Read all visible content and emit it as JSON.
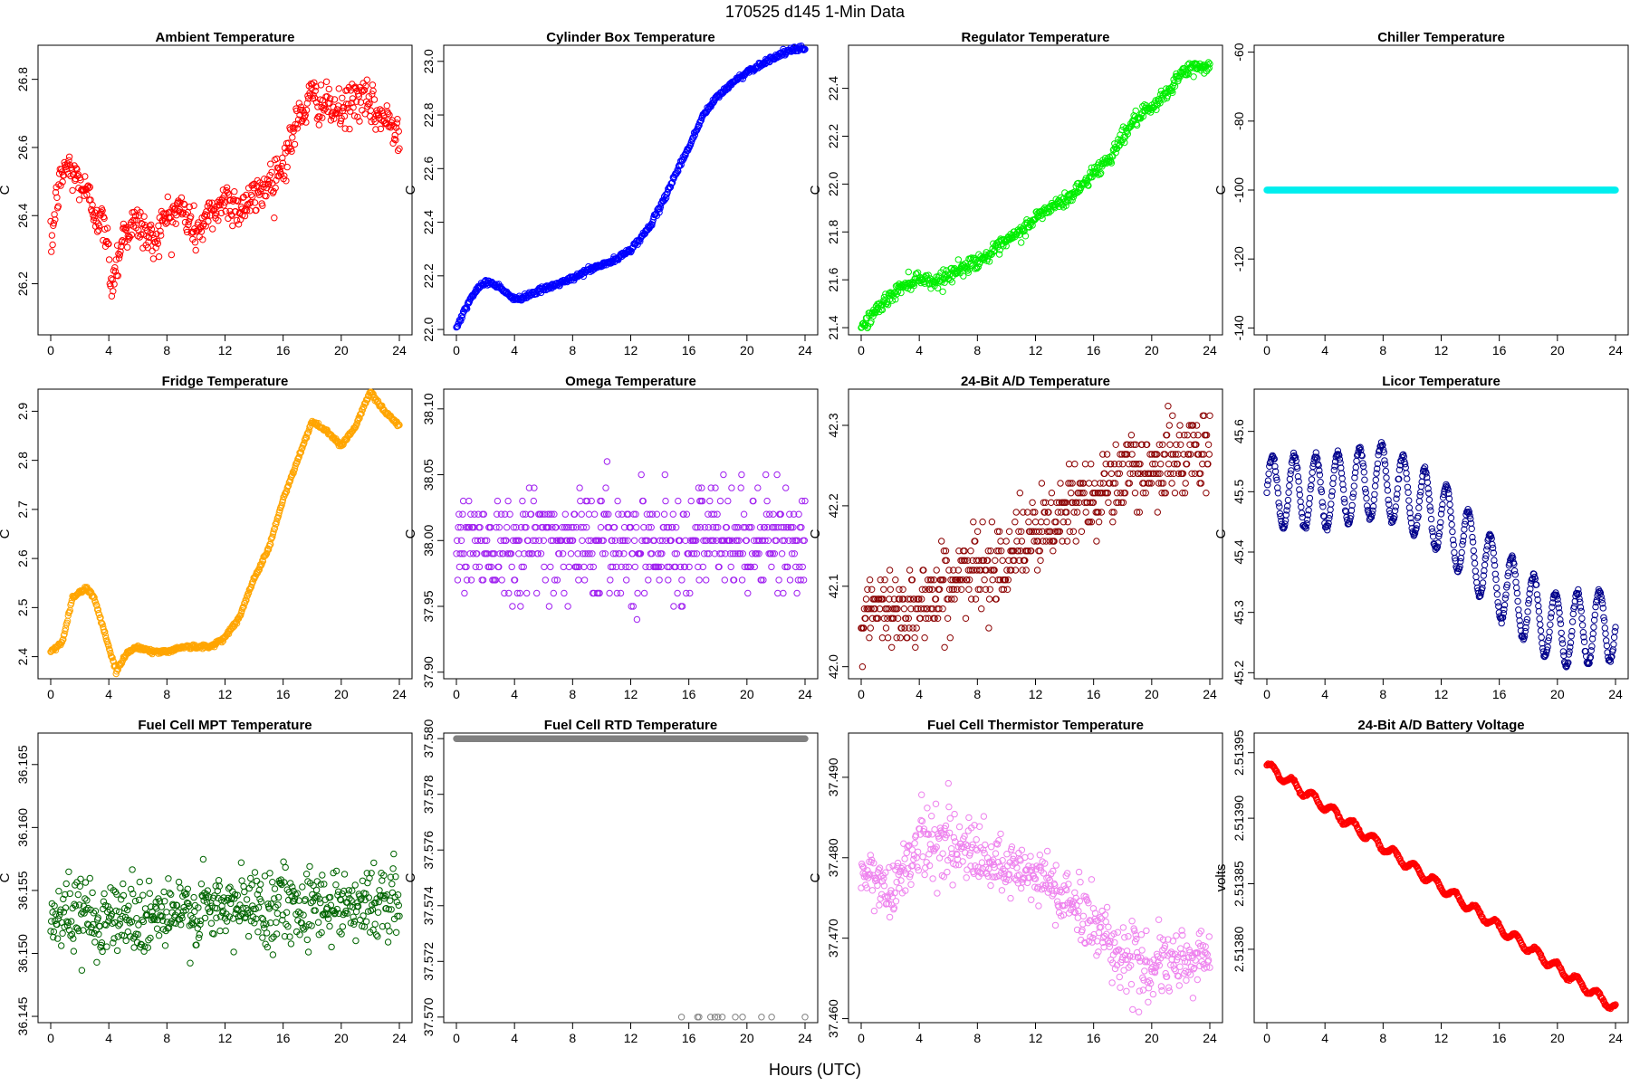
{
  "figure": {
    "title": "170525   d145   1-Min Data",
    "xlabel": "Hours (UTC)"
  },
  "chart_data": [
    {
      "type": "scatter",
      "title": "Ambient Temperature",
      "ylabel": "C",
      "color": "#ff0000",
      "xlim": [
        0,
        24
      ],
      "ylim": [
        26.05,
        26.9
      ],
      "xticks": [
        0,
        4,
        8,
        12,
        16,
        20,
        24
      ],
      "yticks": [
        26.2,
        26.4,
        26.6,
        26.8
      ],
      "ytick_labels": [
        "26.2",
        "26.4",
        "26.6",
        "26.8"
      ],
      "pattern": "noisy",
      "noise": 0.06,
      "trend": [
        [
          0,
          26.3
        ],
        [
          0.4,
          26.45
        ],
        [
          1,
          26.55
        ],
        [
          2,
          26.5
        ],
        [
          3,
          26.42
        ],
        [
          3.8,
          26.35
        ],
        [
          4.2,
          26.2
        ],
        [
          5,
          26.35
        ],
        [
          6,
          26.38
        ],
        [
          7,
          26.32
        ],
        [
          8,
          26.4
        ],
        [
          9,
          26.42
        ],
        [
          10,
          26.35
        ],
        [
          11,
          26.4
        ],
        [
          12,
          26.45
        ],
        [
          13,
          26.42
        ],
        [
          14,
          26.45
        ],
        [
          15,
          26.5
        ],
        [
          16,
          26.55
        ],
        [
          17,
          26.68
        ],
        [
          18,
          26.75
        ],
        [
          19,
          26.72
        ],
        [
          20,
          26.7
        ],
        [
          21,
          26.75
        ],
        [
          22,
          26.72
        ],
        [
          23,
          26.68
        ],
        [
          24,
          26.65
        ]
      ]
    },
    {
      "type": "scatter",
      "title": "Cylinder Box Temperature",
      "ylabel": "C",
      "color": "#0000ff",
      "xlim": [
        0,
        24
      ],
      "ylim": [
        21.98,
        23.06
      ],
      "xticks": [
        0,
        4,
        8,
        12,
        16,
        20,
        24
      ],
      "yticks": [
        22.0,
        22.2,
        22.4,
        22.6,
        22.8,
        23.0
      ],
      "ytick_labels": [
        "22.0",
        "22.2",
        "22.4",
        "22.6",
        "22.8",
        "23.0"
      ],
      "pattern": "smooth",
      "noise": 0.005,
      "trend": [
        [
          0,
          22.01
        ],
        [
          1,
          22.12
        ],
        [
          2,
          22.18
        ],
        [
          3,
          22.16
        ],
        [
          4,
          22.11
        ],
        [
          5,
          22.13
        ],
        [
          6,
          22.15
        ],
        [
          7,
          22.17
        ],
        [
          8,
          22.19
        ],
        [
          9,
          22.22
        ],
        [
          10,
          22.24
        ],
        [
          11,
          22.26
        ],
        [
          12,
          22.3
        ],
        [
          13,
          22.36
        ],
        [
          14,
          22.45
        ],
        [
          15,
          22.57
        ],
        [
          16,
          22.68
        ],
        [
          17,
          22.8
        ],
        [
          18,
          22.87
        ],
        [
          19,
          22.92
        ],
        [
          20,
          22.96
        ],
        [
          21,
          22.99
        ],
        [
          22,
          23.02
        ],
        [
          23,
          23.04
        ],
        [
          24,
          23.05
        ]
      ]
    },
    {
      "type": "scatter",
      "title": "Regulator Temperature",
      "ylabel": "C",
      "color": "#00ee00",
      "xlim": [
        0,
        24
      ],
      "ylim": [
        21.37,
        22.58
      ],
      "xticks": [
        0,
        4,
        8,
        12,
        16,
        20,
        24
      ],
      "yticks": [
        21.4,
        21.6,
        21.8,
        22.0,
        22.2,
        22.4
      ],
      "ytick_labels": [
        "21.4",
        "21.6",
        "21.8",
        "22.0",
        "22.2",
        "22.4"
      ],
      "pattern": "smooth",
      "noise": 0.015,
      "trend": [
        [
          0,
          21.4
        ],
        [
          1,
          21.47
        ],
        [
          2,
          21.53
        ],
        [
          3,
          21.58
        ],
        [
          4,
          21.61
        ],
        [
          5,
          21.59
        ],
        [
          6,
          21.62
        ],
        [
          7,
          21.65
        ],
        [
          8,
          21.68
        ],
        [
          9,
          21.71
        ],
        [
          10,
          21.76
        ],
        [
          11,
          21.8
        ],
        [
          12,
          21.86
        ],
        [
          13,
          21.9
        ],
        [
          14,
          21.93
        ],
        [
          15,
          21.98
        ],
        [
          16,
          22.05
        ],
        [
          17,
          22.1
        ],
        [
          18,
          22.2
        ],
        [
          19,
          22.28
        ],
        [
          20,
          22.31
        ],
        [
          21,
          22.38
        ],
        [
          22,
          22.46
        ],
        [
          23,
          22.49
        ],
        [
          24,
          22.49
        ]
      ]
    },
    {
      "type": "scatter",
      "title": "Chiller Temperature",
      "ylabel": "C",
      "color": "#00eeee",
      "xlim": [
        0,
        24
      ],
      "ylim": [
        -142,
        -58
      ],
      "xticks": [
        0,
        4,
        8,
        12,
        16,
        20,
        24
      ],
      "yticks": [
        -140,
        -120,
        -100,
        -80,
        -60
      ],
      "ytick_labels": [
        "-140",
        "-120",
        "-100",
        "-80",
        "-60"
      ],
      "pattern": "smooth",
      "noise": 0,
      "trend": [
        [
          0,
          -100
        ],
        [
          24,
          -100
        ]
      ]
    },
    {
      "type": "scatter",
      "title": "Fridge Temperature",
      "ylabel": "C",
      "color": "#ffa500",
      "xlim": [
        0,
        24
      ],
      "ylim": [
        2.355,
        2.945
      ],
      "xticks": [
        0,
        4,
        8,
        12,
        16,
        20,
        24
      ],
      "yticks": [
        2.4,
        2.5,
        2.6,
        2.7,
        2.8,
        2.9
      ],
      "ytick_labels": [
        "2.4",
        "2.5",
        "2.6",
        "2.7",
        "2.8",
        "2.9"
      ],
      "pattern": "smooth",
      "noise": 0.002,
      "trend": [
        [
          0,
          2.41
        ],
        [
          0.8,
          2.43
        ],
        [
          1.5,
          2.52
        ],
        [
          2.5,
          2.54
        ],
        [
          3,
          2.52
        ],
        [
          3.7,
          2.45
        ],
        [
          4.5,
          2.37
        ],
        [
          5.3,
          2.41
        ],
        [
          6,
          2.42
        ],
        [
          7,
          2.41
        ],
        [
          8,
          2.41
        ],
        [
          9,
          2.42
        ],
        [
          10,
          2.42
        ],
        [
          11,
          2.42
        ],
        [
          12,
          2.44
        ],
        [
          13,
          2.48
        ],
        [
          14,
          2.56
        ],
        [
          15,
          2.62
        ],
        [
          16,
          2.72
        ],
        [
          17,
          2.8
        ],
        [
          18,
          2.88
        ],
        [
          19,
          2.86
        ],
        [
          20,
          2.83
        ],
        [
          21,
          2.87
        ],
        [
          22,
          2.94
        ],
        [
          23,
          2.9
        ],
        [
          24,
          2.87
        ]
      ]
    },
    {
      "type": "scatter",
      "title": "Omega Temperature",
      "ylabel": "C",
      "color": "#a020f0",
      "xlim": [
        0,
        24
      ],
      "ylim": [
        37.895,
        38.115
      ],
      "xticks": [
        0,
        4,
        8,
        12,
        16,
        20,
        24
      ],
      "yticks": [
        37.9,
        37.95,
        38.0,
        38.05,
        38.1
      ],
      "ytick_labels": [
        "37.90",
        "37.95",
        "38.00",
        "38.05",
        "38.10"
      ],
      "pattern": "quantized",
      "step": 0.01,
      "noise": 0.04,
      "trend": [
        [
          0,
          38.0
        ],
        [
          24,
          38.0
        ]
      ]
    },
    {
      "type": "scatter",
      "title": "24-Bit A/D Temperature",
      "ylabel": "C",
      "color": "#8b0000",
      "xlim": [
        0,
        24
      ],
      "ylim": [
        41.985,
        42.345
      ],
      "xticks": [
        0,
        4,
        8,
        12,
        16,
        20,
        24
      ],
      "yticks": [
        42.0,
        42.1,
        42.2,
        42.3
      ],
      "ytick_labels": [
        "42.0",
        "42.1",
        "42.2",
        "42.3"
      ],
      "pattern": "quantized",
      "step": 0.012,
      "noise": 0.05,
      "trend": [
        [
          0,
          42.06
        ],
        [
          4,
          42.08
        ],
        [
          8,
          42.12
        ],
        [
          12,
          42.16
        ],
        [
          16,
          42.22
        ],
        [
          20,
          42.25
        ],
        [
          24,
          42.27
        ]
      ]
    },
    {
      "type": "scatter",
      "title": "Licor Temperature",
      "ylabel": "C",
      "color": "#00008b",
      "xlim": [
        0,
        24
      ],
      "ylim": [
        45.19,
        45.67
      ],
      "xticks": [
        0,
        4,
        8,
        12,
        16,
        20,
        24
      ],
      "yticks": [
        45.2,
        45.3,
        45.4,
        45.5,
        45.6
      ],
      "ytick_labels": [
        "45.2",
        "45.3",
        "45.4",
        "45.5",
        "45.6"
      ],
      "pattern": "wave",
      "amp": 0.06,
      "period": 1.5,
      "noise": 0.002,
      "trend": [
        [
          0,
          45.5
        ],
        [
          4,
          45.5
        ],
        [
          8,
          45.52
        ],
        [
          12,
          45.46
        ],
        [
          16,
          45.35
        ],
        [
          20,
          45.27
        ],
        [
          24,
          45.28
        ]
      ]
    },
    {
      "type": "scatter",
      "title": "Fuel Cell MPT Temperature",
      "ylabel": "C",
      "color": "#006400",
      "xlim": [
        0,
        24
      ],
      "ylim": [
        36.1445,
        36.1675
      ],
      "xticks": [
        0,
        4,
        8,
        12,
        16,
        20,
        24
      ],
      "yticks": [
        36.145,
        36.15,
        36.155,
        36.16,
        36.165
      ],
      "ytick_labels": [
        "36.145",
        "36.150",
        "36.155",
        "36.160",
        "36.165"
      ],
      "pattern": "noisy",
      "noise": 0.003,
      "trend": [
        [
          0,
          36.153
        ],
        [
          8,
          36.153
        ],
        [
          16,
          36.154
        ],
        [
          24,
          36.154
        ]
      ]
    },
    {
      "type": "scatter",
      "title": "Fuel Cell RTD Temperature",
      "ylabel": "C",
      "color": "#808080",
      "xlim": [
        0,
        24
      ],
      "ylim": [
        37.5698,
        37.5802
      ],
      "xticks": [
        0,
        4,
        8,
        12,
        16,
        20,
        24
      ],
      "yticks": [
        37.57,
        37.572,
        37.574,
        37.576,
        37.578,
        37.58
      ],
      "ytick_labels": [
        "37.570",
        "37.572",
        "37.574",
        "37.576",
        "37.578",
        "37.580"
      ],
      "pattern": "smooth",
      "noise": 0,
      "trend": [
        [
          0,
          37.58
        ],
        [
          24,
          37.58
        ]
      ],
      "extra_points": [
        [
          15.5,
          37.57
        ],
        [
          16.6,
          37.57
        ],
        [
          16.7,
          37.57
        ],
        [
          17.5,
          37.57
        ],
        [
          17.8,
          37.57
        ],
        [
          18.0,
          37.57
        ],
        [
          18.3,
          37.57
        ],
        [
          19.2,
          37.57
        ],
        [
          19.7,
          37.57
        ],
        [
          21.0,
          37.57
        ],
        [
          21.7,
          37.57
        ],
        [
          24.0,
          37.57
        ]
      ]
    },
    {
      "type": "scatter",
      "title": "Fuel Cell Thermistor Temperature",
      "ylabel": "C",
      "color": "#ee82ee",
      "xlim": [
        0,
        24
      ],
      "ylim": [
        37.4595,
        37.4955
      ],
      "xticks": [
        0,
        4,
        8,
        12,
        16,
        20,
        24
      ],
      "yticks": [
        37.46,
        37.47,
        37.48,
        37.49
      ],
      "ytick_labels": [
        "37.460",
        "37.470",
        "37.480",
        "37.490"
      ],
      "pattern": "noisy",
      "noise": 0.004,
      "trend": [
        [
          0,
          37.478
        ],
        [
          2,
          37.476
        ],
        [
          4,
          37.482
        ],
        [
          6,
          37.482
        ],
        [
          8,
          37.48
        ],
        [
          10,
          37.478
        ],
        [
          12,
          37.478
        ],
        [
          14,
          37.475
        ],
        [
          16,
          37.472
        ],
        [
          18,
          37.468
        ],
        [
          20,
          37.466
        ],
        [
          22,
          37.467
        ],
        [
          24,
          37.468
        ]
      ]
    },
    {
      "type": "scatter",
      "title": "24-Bit A/D Battery Voltage",
      "ylabel": "volts",
      "color": "#ff0000",
      "xlim": [
        0,
        24
      ],
      "ylim": [
        2.513744,
        2.513965
      ],
      "xticks": [
        0,
        4,
        8,
        12,
        16,
        20,
        24
      ],
      "yticks": [
        2.5138,
        2.51385,
        2.5139,
        2.51395
      ],
      "ytick_labels": [
        "2.51380",
        "2.51385",
        "2.51390",
        "2.51395"
      ],
      "pattern": "wave",
      "amp": 3.5e-06,
      "period": 1.4,
      "noise": 4e-07,
      "trend": [
        [
          0,
          2.51394
        ],
        [
          24,
          2.513755
        ]
      ]
    }
  ]
}
